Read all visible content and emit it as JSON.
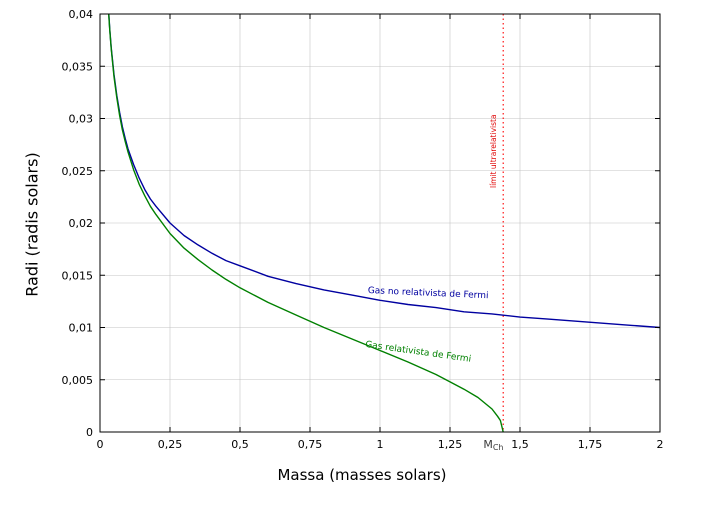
{
  "chart_data": {
    "type": "line",
    "title": "",
    "xlabel": "Massa (masses solars)",
    "ylabel": "Radi (radis solars)",
    "xlim": [
      0,
      2
    ],
    "ylim": [
      0,
      0.04
    ],
    "grid": true,
    "legend_position": "inline-labels",
    "x_ticks": [
      0,
      0.25,
      0.5,
      0.75,
      1,
      1.25,
      1.5,
      1.75,
      2
    ],
    "x_tick_labels": [
      "0",
      "0,25",
      "0,5",
      "0,75",
      "1",
      "1,25",
      "1,5",
      "1,75",
      "2"
    ],
    "y_ticks": [
      0,
      0.005,
      0.01,
      0.015,
      0.02,
      0.025,
      0.03,
      0.035,
      0.04
    ],
    "y_tick_labels": [
      "0",
      "0,005",
      "0,01",
      "0,015",
      "0,02",
      "0,025",
      "0,03",
      "0,035",
      "0,04"
    ],
    "series": [
      {
        "name": "Gas no relativista de Fermi",
        "color": "#0000a0",
        "points": [
          [
            0.0315,
            0.04
          ],
          [
            0.035,
            0.0385
          ],
          [
            0.04,
            0.0368
          ],
          [
            0.05,
            0.0342
          ],
          [
            0.06,
            0.0322
          ],
          [
            0.07,
            0.0306
          ],
          [
            0.08,
            0.0292
          ],
          [
            0.09,
            0.0281
          ],
          [
            0.1,
            0.0271
          ],
          [
            0.12,
            0.0256
          ],
          [
            0.14,
            0.0243
          ],
          [
            0.16,
            0.0232
          ],
          [
            0.18,
            0.0223
          ],
          [
            0.2,
            0.0216
          ],
          [
            0.25,
            0.02
          ],
          [
            0.3,
            0.0188
          ],
          [
            0.35,
            0.0179
          ],
          [
            0.4,
            0.0171
          ],
          [
            0.45,
            0.0164
          ],
          [
            0.5,
            0.0159
          ],
          [
            0.6,
            0.0149
          ],
          [
            0.7,
            0.0142
          ],
          [
            0.8,
            0.0136
          ],
          [
            0.9,
            0.0131
          ],
          [
            1.0,
            0.0126
          ],
          [
            1.1,
            0.0122
          ],
          [
            1.2,
            0.0119
          ],
          [
            1.3,
            0.0115
          ],
          [
            1.4,
            0.0113
          ],
          [
            1.5,
            0.011
          ],
          [
            1.6,
            0.0108
          ],
          [
            1.7,
            0.0106
          ],
          [
            1.8,
            0.0104
          ],
          [
            1.9,
            0.0102
          ],
          [
            2.0,
            0.01
          ]
        ]
      },
      {
        "name": "Gas relativista de Fermi",
        "color": "#008000",
        "points": [
          [
            0.031,
            0.04
          ],
          [
            0.035,
            0.0384
          ],
          [
            0.04,
            0.0367
          ],
          [
            0.05,
            0.034
          ],
          [
            0.06,
            0.032
          ],
          [
            0.07,
            0.0303
          ],
          [
            0.08,
            0.0289
          ],
          [
            0.09,
            0.0278
          ],
          [
            0.1,
            0.0268
          ],
          [
            0.12,
            0.0251
          ],
          [
            0.14,
            0.0237
          ],
          [
            0.16,
            0.0226
          ],
          [
            0.18,
            0.0216
          ],
          [
            0.2,
            0.0208
          ],
          [
            0.25,
            0.019
          ],
          [
            0.3,
            0.0176
          ],
          [
            0.35,
            0.0165
          ],
          [
            0.4,
            0.0155
          ],
          [
            0.45,
            0.0146
          ],
          [
            0.5,
            0.0138
          ],
          [
            0.6,
            0.0124
          ],
          [
            0.7,
            0.0112
          ],
          [
            0.8,
            0.01
          ],
          [
            0.9,
            0.0089
          ],
          [
            1.0,
            0.0078
          ],
          [
            1.1,
            0.0067
          ],
          [
            1.2,
            0.0055
          ],
          [
            1.3,
            0.0041
          ],
          [
            1.35,
            0.0033
          ],
          [
            1.4,
            0.0022
          ],
          [
            1.42,
            0.0015
          ],
          [
            1.43,
            0.0011
          ],
          [
            1.44,
            0.0
          ]
        ]
      }
    ],
    "vline": {
      "x": 1.44,
      "color": "#ff0000",
      "style": "dotted",
      "label": "límit ultrarelativista",
      "axis_label_main": "M",
      "axis_label_sub": "Ch",
      "axis_label_x": 1.405
    },
    "grid_color": "#c4c4c4",
    "frame_color": "#000000"
  }
}
